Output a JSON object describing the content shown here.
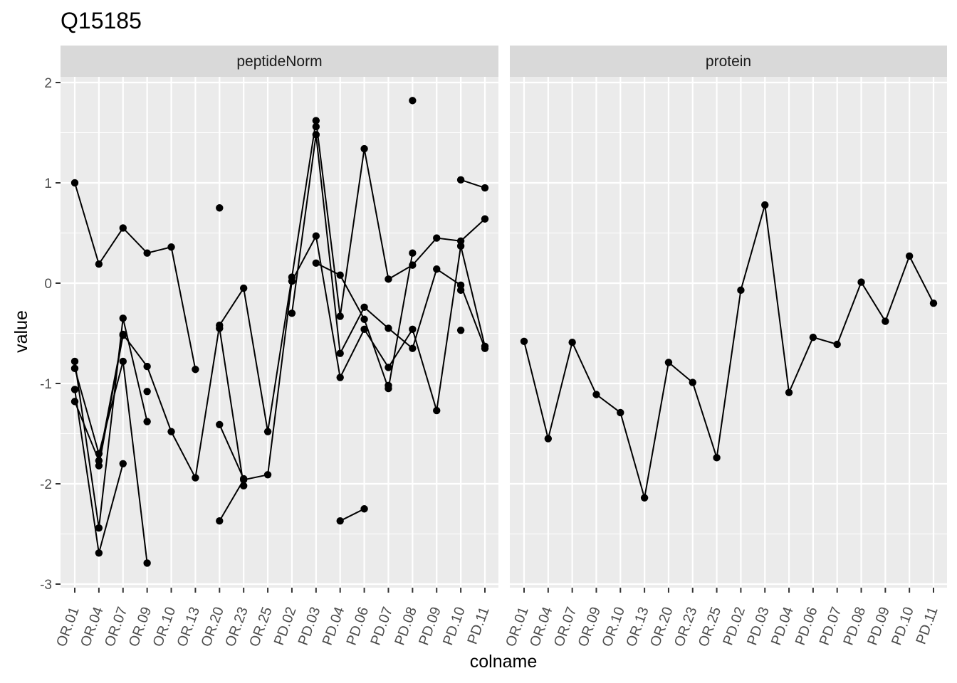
{
  "chart_data": {
    "type": "line",
    "title": "Q15185",
    "xlabel": "colname",
    "ylabel": "value",
    "ylim": [
      -3,
      2
    ],
    "yticks": [
      2,
      1,
      0,
      -1,
      -2,
      -3
    ],
    "y_tick_labels": [
      "2",
      "1",
      "0",
      "-1",
      "-2",
      "-3"
    ],
    "categories": [
      "OR.01",
      "OR.04",
      "OR.07",
      "OR.09",
      "OR.10",
      "OR.13",
      "OR.20",
      "OR.23",
      "OR.25",
      "PD.02",
      "PD.03",
      "PD.04",
      "PD.06",
      "PD.07",
      "PD.08",
      "PD.09",
      "PD.10",
      "PD.11"
    ],
    "grid": true,
    "panel_background": "#ebebeb",
    "strip_background": "#d9d9d9",
    "point_color": "#000000",
    "panels": [
      {
        "strip_label": "peptideNorm",
        "series": [
          {
            "values": [
              1.0,
              0.19,
              0.55,
              0.3,
              0.36,
              -0.86,
              null,
              null,
              null,
              null,
              null,
              null,
              null,
              null,
              null,
              null,
              null,
              null
            ]
          },
          {
            "values": [
              -0.78,
              -2.44,
              -0.35,
              -1.38,
              null,
              null,
              null,
              null,
              null,
              null,
              null,
              null,
              null,
              null,
              null,
              null,
              null,
              null
            ]
          },
          {
            "values": [
              -0.85,
              -1.7,
              -0.78,
              -2.79,
              null,
              null,
              null,
              null,
              null,
              null,
              null,
              null,
              null,
              null,
              null,
              null,
              null,
              null
            ]
          },
          {
            "values": [
              -1.06,
              -2.69,
              -1.8,
              null,
              null,
              null,
              null,
              null,
              null,
              null,
              null,
              null,
              null,
              null,
              null,
              null,
              null,
              null
            ]
          },
          {
            "values": [
              -1.18,
              -1.77,
              -0.51,
              -0.83,
              -1.48,
              -1.94,
              -0.42,
              -0.05,
              -1.48,
              0.06,
              1.62,
              -0.33,
              1.34,
              0.04,
              0.18,
              0.45,
              0.42,
              0.64
            ]
          },
          {
            "values": [
              null,
              -1.82,
              -0.52,
              null,
              null,
              null,
              -0.45,
              -2.02,
              null,
              null,
              1.56,
              null,
              null,
              null,
              null,
              null,
              null,
              null
            ]
          },
          {
            "values": [
              null,
              null,
              null,
              -1.08,
              null,
              null,
              null,
              null,
              null,
              null,
              null,
              null,
              null,
              null,
              null,
              null,
              null,
              null
            ]
          },
          {
            "values": [
              null,
              null,
              null,
              null,
              null,
              null,
              0.75,
              null,
              null,
              null,
              null,
              null,
              null,
              null,
              null,
              null,
              null,
              null
            ]
          },
          {
            "values": [
              null,
              null,
              null,
              null,
              null,
              null,
              -1.41,
              -1.95,
              null,
              null,
              null,
              null,
              null,
              null,
              null,
              null,
              null,
              null
            ]
          },
          {
            "values": [
              null,
              null,
              null,
              null,
              null,
              null,
              -2.37,
              -1.96,
              -1.91,
              0.02,
              0.47,
              -0.94,
              -0.46,
              -0.84,
              -0.46,
              -1.27,
              0.37,
              -0.63
            ]
          },
          {
            "values": [
              null,
              null,
              null,
              null,
              null,
              null,
              null,
              null,
              null,
              -0.3,
              1.48,
              -0.7,
              -0.24,
              -0.45,
              -0.65,
              0.14,
              -0.02,
              -0.65
            ]
          },
          {
            "values": [
              null,
              null,
              null,
              null,
              null,
              null,
              null,
              null,
              null,
              null,
              0.2,
              0.08,
              -0.36,
              -1.05,
              0.3,
              null,
              null,
              null
            ]
          },
          {
            "values": [
              null,
              null,
              null,
              null,
              null,
              null,
              null,
              null,
              null,
              null,
              null,
              -2.37,
              -2.25,
              null,
              null,
              null,
              null,
              null
            ]
          },
          {
            "values": [
              null,
              null,
              null,
              null,
              null,
              null,
              null,
              null,
              null,
              null,
              null,
              null,
              null,
              -1.02,
              null,
              null,
              null,
              null
            ]
          },
          {
            "values": [
              null,
              null,
              null,
              null,
              null,
              null,
              null,
              null,
              null,
              null,
              null,
              null,
              null,
              null,
              1.82,
              null,
              null,
              null
            ]
          },
          {
            "values": [
              null,
              null,
              null,
              null,
              null,
              null,
              null,
              null,
              null,
              null,
              null,
              null,
              null,
              null,
              null,
              null,
              1.03,
              0.95
            ]
          },
          {
            "values": [
              null,
              null,
              null,
              null,
              null,
              null,
              null,
              null,
              null,
              null,
              null,
              null,
              null,
              null,
              null,
              null,
              -0.07,
              null
            ]
          },
          {
            "values": [
              null,
              null,
              null,
              null,
              null,
              null,
              null,
              null,
              null,
              null,
              null,
              null,
              null,
              null,
              null,
              null,
              -0.47,
              null
            ]
          }
        ]
      },
      {
        "strip_label": "protein",
        "series": [
          {
            "values": [
              -0.58,
              -1.55,
              -0.59,
              -1.11,
              -1.29,
              -2.14,
              -0.79,
              -0.99,
              -1.74,
              -0.07,
              0.78,
              -1.09,
              -0.54,
              -0.61,
              0.01,
              -0.38,
              0.27,
              -0.2
            ]
          }
        ]
      }
    ]
  }
}
